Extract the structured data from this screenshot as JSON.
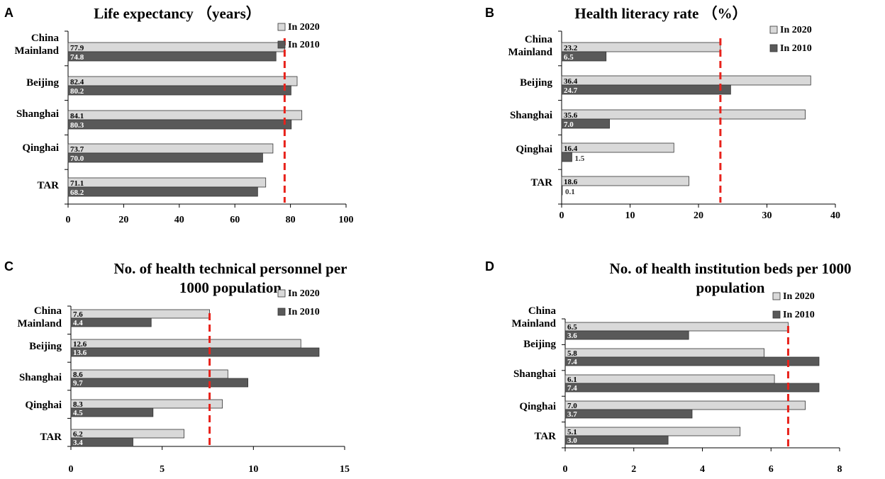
{
  "chart_data": [
    {
      "type": "bar",
      "orientation": "horizontal",
      "panel": "A",
      "title": "Life expectancy （years）",
      "categories": [
        "China Mainland",
        "Beijing",
        "Shanghai",
        "Qinghai",
        "TAR"
      ],
      "series": [
        {
          "name": "In 2020",
          "values": [
            77.9,
            82.4,
            84.1,
            73.7,
            71.1
          ],
          "color": "#d9d9d9"
        },
        {
          "name": "In 2010",
          "values": [
            74.8,
            80.2,
            80.3,
            70.0,
            68.2
          ],
          "color": "#595959"
        }
      ],
      "xlim": [
        0,
        100
      ],
      "xticks": [
        0,
        20,
        40,
        60,
        80,
        100
      ],
      "reference_line": {
        "value": 77.9,
        "color": "#e8221b",
        "style": "dashed"
      },
      "legend_position": "top-right"
    },
    {
      "type": "bar",
      "orientation": "horizontal",
      "panel": "B",
      "title": "Health literacy rate （%）",
      "categories": [
        "China Mainland",
        "Beijing",
        "Shanghai",
        "Qinghai",
        "TAR"
      ],
      "series": [
        {
          "name": "In 2020",
          "values": [
            23.2,
            36.4,
            35.6,
            16.4,
            18.6
          ],
          "color": "#d9d9d9"
        },
        {
          "name": "In 2010",
          "values": [
            6.5,
            24.7,
            7.0,
            1.5,
            0.1
          ],
          "color": "#595959"
        }
      ],
      "xlim": [
        0,
        40
      ],
      "xticks": [
        0,
        10,
        20,
        30,
        40
      ],
      "reference_line": {
        "value": 23.2,
        "color": "#e8221b",
        "style": "dashed"
      },
      "legend_position": "top-right"
    },
    {
      "type": "bar",
      "orientation": "horizontal",
      "panel": "C",
      "title": "No. of health technical personnel per 1000 population",
      "title_lines": [
        "No. of health technical personnel per",
        "1000 population"
      ],
      "categories": [
        "China Mainland",
        "Beijing",
        "Shanghai",
        "Qinghai",
        "TAR"
      ],
      "series": [
        {
          "name": "In 2020",
          "values": [
            7.6,
            12.6,
            8.6,
            8.3,
            6.2
          ],
          "color": "#d9d9d9"
        },
        {
          "name": "In 2010",
          "values": [
            4.4,
            13.6,
            9.7,
            4.5,
            3.4
          ],
          "color": "#595959"
        }
      ],
      "xlim": [
        0,
        15
      ],
      "xticks": [
        0,
        5,
        10,
        15
      ],
      "reference_line": {
        "value": 7.6,
        "color": "#e8221b",
        "style": "dashed"
      },
      "legend_position": "top-right"
    },
    {
      "type": "bar",
      "orientation": "horizontal",
      "panel": "D",
      "title": "No. of health institution beds per 1000 population",
      "title_lines": [
        "No. of health institution beds per 1000",
        "population"
      ],
      "categories": [
        "China Mainland",
        "Beijing",
        "Shanghai",
        "Qinghai",
        "TAR"
      ],
      "series": [
        {
          "name": "In 2020",
          "values": [
            6.5,
            5.8,
            6.1,
            7.0,
            5.1
          ],
          "color": "#d9d9d9"
        },
        {
          "name": "In 2010",
          "values": [
            3.6,
            7.4,
            7.4,
            3.7,
            3.0
          ],
          "color": "#595959"
        }
      ],
      "xlim": [
        0,
        8
      ],
      "xticks": [
        0,
        2,
        4,
        6,
        8
      ],
      "reference_line": {
        "value": 6.5,
        "color": "#e8221b",
        "style": "dashed"
      },
      "legend_position": "top-right"
    }
  ]
}
